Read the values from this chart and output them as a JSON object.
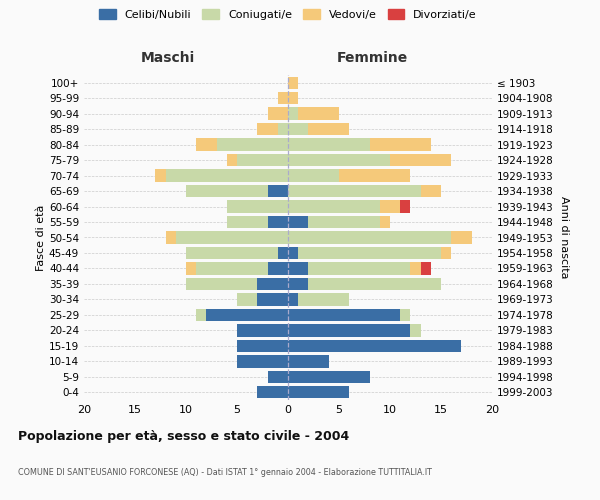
{
  "age_groups": [
    "0-4",
    "5-9",
    "10-14",
    "15-19",
    "20-24",
    "25-29",
    "30-34",
    "35-39",
    "40-44",
    "45-49",
    "50-54",
    "55-59",
    "60-64",
    "65-69",
    "70-74",
    "75-79",
    "80-84",
    "85-89",
    "90-94",
    "95-99",
    "100+"
  ],
  "birth_years": [
    "1999-2003",
    "1994-1998",
    "1989-1993",
    "1984-1988",
    "1979-1983",
    "1974-1978",
    "1969-1973",
    "1964-1968",
    "1959-1963",
    "1954-1958",
    "1949-1953",
    "1944-1948",
    "1939-1943",
    "1934-1938",
    "1929-1933",
    "1924-1928",
    "1919-1923",
    "1914-1918",
    "1909-1913",
    "1904-1908",
    "≤ 1903"
  ],
  "colors": {
    "celibi": "#3A6EA5",
    "coniugati": "#C8D9A8",
    "vedovi": "#F5C97A",
    "divorziati": "#D94040"
  },
  "maschi": {
    "celibi": [
      3,
      2,
      5,
      5,
      5,
      8,
      3,
      3,
      2,
      1,
      0,
      2,
      0,
      2,
      0,
      0,
      0,
      0,
      0,
      0,
      0
    ],
    "coniugati": [
      0,
      0,
      0,
      0,
      0,
      1,
      2,
      7,
      7,
      9,
      11,
      4,
      6,
      8,
      12,
      5,
      7,
      1,
      0,
      0,
      0
    ],
    "vedovi": [
      0,
      0,
      0,
      0,
      0,
      0,
      0,
      0,
      1,
      0,
      1,
      0,
      0,
      0,
      1,
      1,
      2,
      2,
      2,
      1,
      0
    ],
    "divorziati": [
      0,
      0,
      0,
      0,
      0,
      0,
      0,
      0,
      0,
      0,
      0,
      0,
      0,
      0,
      0,
      0,
      0,
      0,
      0,
      0,
      0
    ]
  },
  "femmine": {
    "nubili": [
      6,
      8,
      4,
      17,
      12,
      11,
      1,
      2,
      2,
      1,
      0,
      2,
      0,
      0,
      0,
      0,
      0,
      0,
      0,
      0,
      0
    ],
    "coniugate": [
      0,
      0,
      0,
      0,
      1,
      1,
      5,
      13,
      10,
      14,
      16,
      7,
      9,
      13,
      5,
      10,
      8,
      2,
      1,
      0,
      0
    ],
    "vedove": [
      0,
      0,
      0,
      0,
      0,
      0,
      0,
      0,
      1,
      1,
      2,
      1,
      2,
      2,
      7,
      6,
      6,
      4,
      4,
      1,
      1
    ],
    "divorziate": [
      0,
      0,
      0,
      0,
      0,
      0,
      0,
      0,
      1,
      0,
      0,
      0,
      1,
      0,
      0,
      0,
      0,
      0,
      0,
      0,
      0
    ]
  },
  "xlim": 20,
  "title": "Popolazione per età, sesso e stato civile - 2004",
  "subtitle": "COMUNE DI SANT'EUSANIO FORCONESE (AQ) - Dati ISTAT 1° gennaio 2004 - Elaborazione TUTTITALIA.IT",
  "ylabel_left": "Fasce di età",
  "ylabel_right": "Anni di nascita",
  "xlabel_left": "Maschi",
  "xlabel_right": "Femmine",
  "legend_labels": [
    "Celibi/Nubili",
    "Coniugati/e",
    "Vedovi/e",
    "Divorziati/e"
  ],
  "bg_color": "#FAFAFA",
  "grid_color": "#CCCCCC"
}
